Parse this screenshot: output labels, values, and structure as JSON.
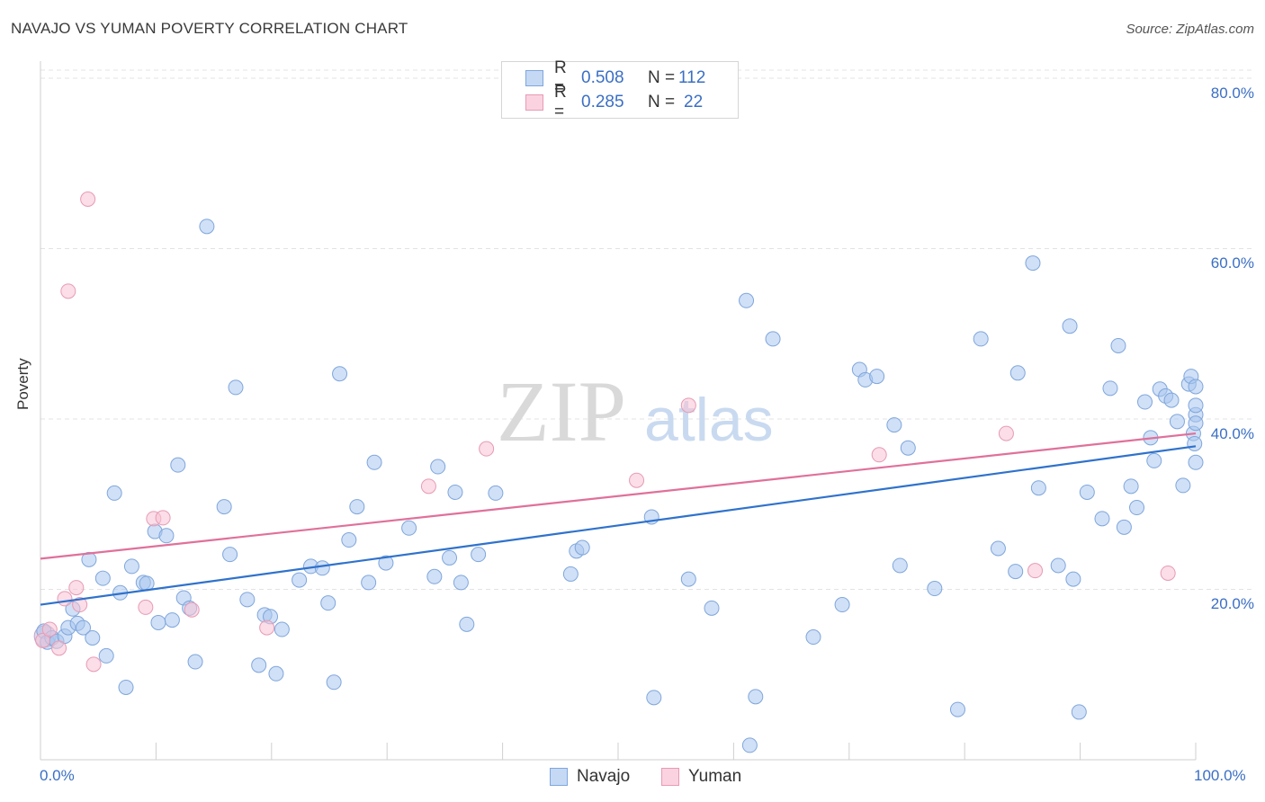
{
  "title": "NAVAJO VS YUMAN POVERTY CORRELATION CHART",
  "source": "Source: ZipAtlas.com",
  "watermark": {
    "zip": "ZIP",
    "atlas": "atlas"
  },
  "legend_top": {
    "rows": [
      {
        "swatch_color": "#a9c6ef",
        "r_label": "R =",
        "r_value": "0.508",
        "n_label": "N =",
        "n_value": "112"
      },
      {
        "swatch_color": "#f5b8cc",
        "r_label": "R =",
        "r_value": "0.285",
        "n_label": "N =",
        "n_value": "22"
      }
    ]
  },
  "legend_bottom": [
    {
      "label": "Navajo",
      "color": "#a9c6ef"
    },
    {
      "label": "Yuman",
      "color": "#f5b8cc"
    }
  ],
  "colors": {
    "navajo_fill": "#a9c6ef",
    "navajo_stroke": "#7fa6dc",
    "navajo_line": "#2f72cc",
    "yuman_fill": "#f7c3d4",
    "yuman_stroke": "#e79ab4",
    "yuman_line": "#e0709a",
    "grid": "#e3e3e3",
    "axis_label": "#3b6fc4"
  },
  "chart_data": {
    "type": "scatter",
    "title": "NAVAJO VS YUMAN POVERTY CORRELATION CHART",
    "xlabel": "",
    "ylabel": "Poverty",
    "xlim": [
      0,
      100
    ],
    "ylim": [
      0,
      82
    ],
    "x_tick_labels": [
      "0.0%",
      "100.0%"
    ],
    "y_ticks": [
      20,
      40,
      60,
      80
    ],
    "y_tick_labels": [
      "20.0%",
      "40.0%",
      "60.0%",
      "80.0%"
    ],
    "grid": true,
    "legend": "top-center",
    "series": [
      {
        "name": "Navajo",
        "r": 0.508,
        "n": 112,
        "trend": [
          [
            0,
            18.2
          ],
          [
            100,
            36.8
          ]
        ],
        "points": [
          [
            0.3,
            15.1
          ],
          [
            0.6,
            13.8
          ],
          [
            1.0,
            14.3
          ],
          [
            1.4,
            13.9
          ],
          [
            2.1,
            14.5
          ],
          [
            2.4,
            15.5
          ],
          [
            2.8,
            17.7
          ],
          [
            3.2,
            16.0
          ],
          [
            3.7,
            15.5
          ],
          [
            4.2,
            23.5
          ],
          [
            4.5,
            14.3
          ],
          [
            5.4,
            21.3
          ],
          [
            5.7,
            12.2
          ],
          [
            6.4,
            31.3
          ],
          [
            6.9,
            19.6
          ],
          [
            7.4,
            8.5
          ],
          [
            7.9,
            22.7
          ],
          [
            8.9,
            20.8
          ],
          [
            9.2,
            20.7
          ],
          [
            9.9,
            26.8
          ],
          [
            10.2,
            16.1
          ],
          [
            10.9,
            26.3
          ],
          [
            11.4,
            16.4
          ],
          [
            11.9,
            34.6
          ],
          [
            12.4,
            19.0
          ],
          [
            12.9,
            17.8
          ],
          [
            13.4,
            11.5
          ],
          [
            14.4,
            62.6
          ],
          [
            15.9,
            29.7
          ],
          [
            16.4,
            24.1
          ],
          [
            16.9,
            43.7
          ],
          [
            17.9,
            18.8
          ],
          [
            18.9,
            11.1
          ],
          [
            19.4,
            17.0
          ],
          [
            19.9,
            16.8
          ],
          [
            20.4,
            10.1
          ],
          [
            20.9,
            15.3
          ],
          [
            22.4,
            21.1
          ],
          [
            23.4,
            22.7
          ],
          [
            24.4,
            22.5
          ],
          [
            24.9,
            18.4
          ],
          [
            25.4,
            9.1
          ],
          [
            25.9,
            45.3
          ],
          [
            26.7,
            25.8
          ],
          [
            27.4,
            29.7
          ],
          [
            28.4,
            20.8
          ],
          [
            28.9,
            34.9
          ],
          [
            29.9,
            23.1
          ],
          [
            31.9,
            27.2
          ],
          [
            34.1,
            21.5
          ],
          [
            34.4,
            34.4
          ],
          [
            35.4,
            23.7
          ],
          [
            35.9,
            31.4
          ],
          [
            36.4,
            20.8
          ],
          [
            36.9,
            15.9
          ],
          [
            37.9,
            24.1
          ],
          [
            39.4,
            31.3
          ],
          [
            45.9,
            21.8
          ],
          [
            46.4,
            24.5
          ],
          [
            46.9,
            24.9
          ],
          [
            52.9,
            28.5
          ],
          [
            53.1,
            7.3
          ],
          [
            56.1,
            21.2
          ],
          [
            58.1,
            17.8
          ],
          [
            61.1,
            53.9
          ],
          [
            61.4,
            1.7
          ],
          [
            61.9,
            7.4
          ],
          [
            63.4,
            49.4
          ],
          [
            66.9,
            14.4
          ],
          [
            69.4,
            18.2
          ],
          [
            70.9,
            45.8
          ],
          [
            71.4,
            44.6
          ],
          [
            72.4,
            45.0
          ],
          [
            73.9,
            39.3
          ],
          [
            74.4,
            22.8
          ],
          [
            75.1,
            36.6
          ],
          [
            77.4,
            20.1
          ],
          [
            79.4,
            5.9
          ],
          [
            81.4,
            49.4
          ],
          [
            82.9,
            24.8
          ],
          [
            84.4,
            22.1
          ],
          [
            84.6,
            45.4
          ],
          [
            85.9,
            58.3
          ],
          [
            86.4,
            31.9
          ],
          [
            88.1,
            22.8
          ],
          [
            89.1,
            50.9
          ],
          [
            89.4,
            21.2
          ],
          [
            89.9,
            5.6
          ],
          [
            90.6,
            31.4
          ],
          [
            91.9,
            28.3
          ],
          [
            92.6,
            43.6
          ],
          [
            93.3,
            48.6
          ],
          [
            93.8,
            27.3
          ],
          [
            94.4,
            32.1
          ],
          [
            94.9,
            29.6
          ],
          [
            95.6,
            42.0
          ],
          [
            96.1,
            37.8
          ],
          [
            96.4,
            35.1
          ],
          [
            96.9,
            43.5
          ],
          [
            97.4,
            42.7
          ],
          [
            97.9,
            42.2
          ],
          [
            98.4,
            39.7
          ],
          [
            98.9,
            32.2
          ],
          [
            99.4,
            44.1
          ],
          [
            99.6,
            45.0
          ],
          [
            99.8,
            38.3
          ],
          [
            99.9,
            37.1
          ],
          [
            100.0,
            34.9
          ],
          [
            100.0,
            40.5
          ],
          [
            100.0,
            43.8
          ],
          [
            100.0,
            39.5
          ],
          [
            100.0,
            41.6
          ]
        ]
      },
      {
        "name": "Yuman",
        "r": 0.285,
        "n": 22,
        "trend": [
          [
            0,
            23.6
          ],
          [
            100,
            38.3
          ]
        ],
        "points": [
          [
            0.2,
            14.0
          ],
          [
            0.8,
            15.3
          ],
          [
            1.6,
            13.1
          ],
          [
            2.1,
            18.9
          ],
          [
            2.4,
            55.0
          ],
          [
            3.1,
            20.2
          ],
          [
            3.4,
            18.2
          ],
          [
            4.1,
            65.8
          ],
          [
            4.6,
            11.2
          ],
          [
            9.1,
            17.9
          ],
          [
            9.8,
            28.3
          ],
          [
            10.6,
            28.4
          ],
          [
            13.1,
            17.6
          ],
          [
            19.6,
            15.5
          ],
          [
            33.6,
            32.1
          ],
          [
            38.6,
            36.5
          ],
          [
            51.6,
            32.8
          ],
          [
            56.1,
            41.6
          ],
          [
            72.6,
            35.8
          ],
          [
            83.6,
            38.3
          ],
          [
            86.1,
            22.2
          ],
          [
            97.6,
            21.9
          ]
        ]
      }
    ]
  }
}
